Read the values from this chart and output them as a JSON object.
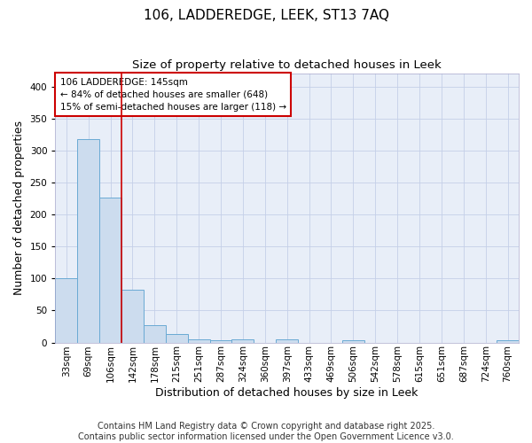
{
  "title_line1": "106, LADDEREDGE, LEEK, ST13 7AQ",
  "title_line2": "Size of property relative to detached houses in Leek",
  "xlabel": "Distribution of detached houses by size in Leek",
  "ylabel": "Number of detached properties",
  "categories": [
    "33sqm",
    "69sqm",
    "106sqm",
    "142sqm",
    "178sqm",
    "215sqm",
    "251sqm",
    "287sqm",
    "324sqm",
    "360sqm",
    "397sqm",
    "433sqm",
    "469sqm",
    "506sqm",
    "542sqm",
    "578sqm",
    "615sqm",
    "651sqm",
    "687sqm",
    "724sqm",
    "760sqm"
  ],
  "values": [
    100,
    317,
    226,
    83,
    27,
    13,
    5,
    4,
    5,
    0,
    5,
    0,
    0,
    3,
    0,
    0,
    0,
    0,
    0,
    0,
    3
  ],
  "bar_color": "#ccdcee",
  "bar_edge_color": "#6aaad4",
  "grid_color": "#c5cfe8",
  "background_color": "#e8eef8",
  "vline_color": "#cc0000",
  "annotation_text": "106 LADDEREDGE: 145sqm\n← 84% of detached houses are smaller (648)\n15% of semi-detached houses are larger (118) →",
  "annotation_box_color": "#cc0000",
  "ylim": [
    0,
    420
  ],
  "yticks": [
    0,
    50,
    100,
    150,
    200,
    250,
    300,
    350,
    400
  ],
  "footer_line1": "Contains HM Land Registry data © Crown copyright and database right 2025.",
  "footer_line2": "Contains public sector information licensed under the Open Government Licence v3.0.",
  "footer_fontsize": 7.0,
  "title_fontsize": 11,
  "subtitle_fontsize": 9.5,
  "axis_label_fontsize": 9,
  "tick_fontsize": 7.5,
  "annotation_fontsize": 7.5
}
